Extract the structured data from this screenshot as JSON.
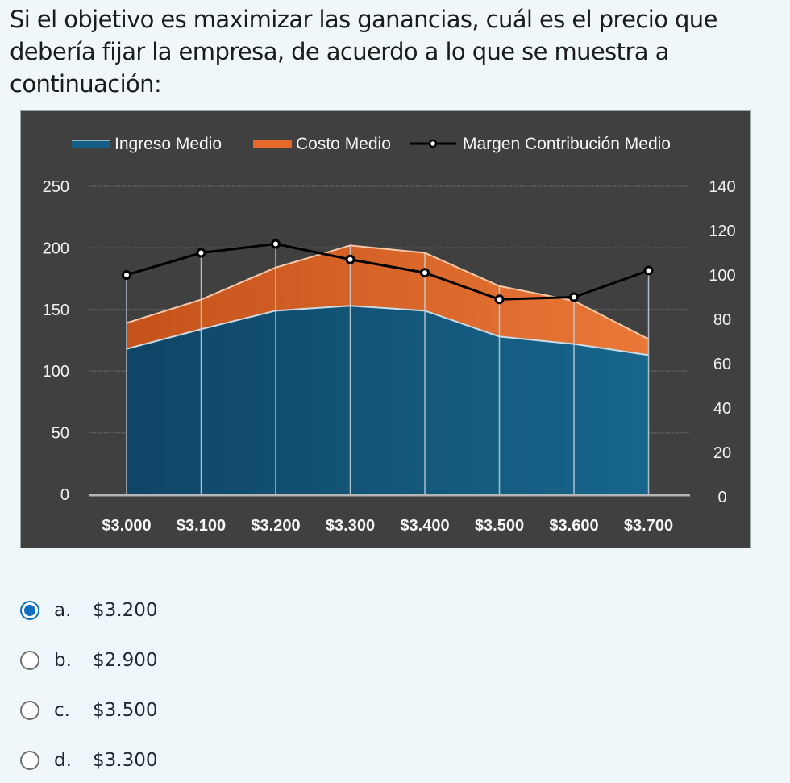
{
  "question": {
    "text": "Si el objetivo es maximizar las ganancias, cuál es el precio que debería fijar la empresa, de acuerdo a lo que se muestra a continuación:"
  },
  "chart_data": {
    "type": "area",
    "title": "",
    "categories": [
      "$3.000",
      "$3.100",
      "$3.200",
      "$3.300",
      "$3.400",
      "$3.500",
      "$3.600",
      "$3.700"
    ],
    "series": [
      {
        "name": "Ingreso Medio",
        "kind": "stacked-area",
        "axis": "left",
        "color": "#145a7e",
        "values": [
          118,
          134,
          149,
          153,
          149,
          128,
          122,
          113
        ]
      },
      {
        "name": "Costo Medio",
        "kind": "stacked-area",
        "axis": "left",
        "color": "#e06a2a",
        "values": [
          21,
          24,
          35,
          49,
          47,
          41,
          35,
          13
        ]
      },
      {
        "name": "Margen Contribución Medio",
        "kind": "line",
        "axis": "right",
        "color": "#000000",
        "values": [
          100,
          110,
          114,
          107,
          101,
          89,
          90,
          102
        ]
      }
    ],
    "y_left": {
      "ticks": [
        "0",
        "50",
        "100",
        "150",
        "200",
        "250"
      ],
      "ylim": [
        0,
        250
      ]
    },
    "y_right": {
      "ticks": [
        "0",
        "20",
        "40",
        "60",
        "80",
        "100",
        "120",
        "140"
      ],
      "ylim": [
        0,
        140
      ]
    },
    "legend": "top",
    "grid": true
  },
  "answers": {
    "options": [
      {
        "letter": "a.",
        "value": "$3.200",
        "selected": true
      },
      {
        "letter": "b.",
        "value": "$2.900",
        "selected": false
      },
      {
        "letter": "c.",
        "value": "$3.500",
        "selected": false
      },
      {
        "letter": "d.",
        "value": "$3.300",
        "selected": false
      }
    ]
  }
}
